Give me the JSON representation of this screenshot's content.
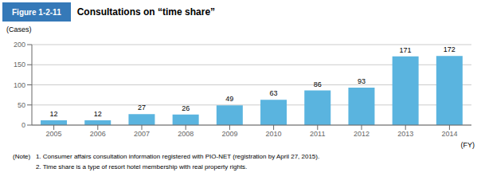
{
  "chart_data": {
    "type": "bar",
    "title": "Consultations on “time share”",
    "annotations": [
      "Figure 1-2-11",
      "(Note)   1. Consumer affairs consultation information registered with PIO-NET (registration by April 27, 2015).",
      "             2. Time share is a type of resort hotel membership with real property rights."
    ],
    "categories": [
      "2005",
      "2006",
      "2007",
      "2008",
      "2009",
      "2010",
      "2011",
      "2012",
      "2013",
      "2014"
    ],
    "values": [
      12,
      12,
      27,
      26,
      49,
      63,
      86,
      93,
      171,
      172
    ],
    "color": "#5ab4df",
    "ylim": [
      0,
      200
    ],
    "yticks": [
      0,
      50,
      100,
      150,
      200
    ],
    "ylabel": "(Cases)",
    "xlabel": "(FY)",
    "grid": true,
    "data_labels": true
  }
}
